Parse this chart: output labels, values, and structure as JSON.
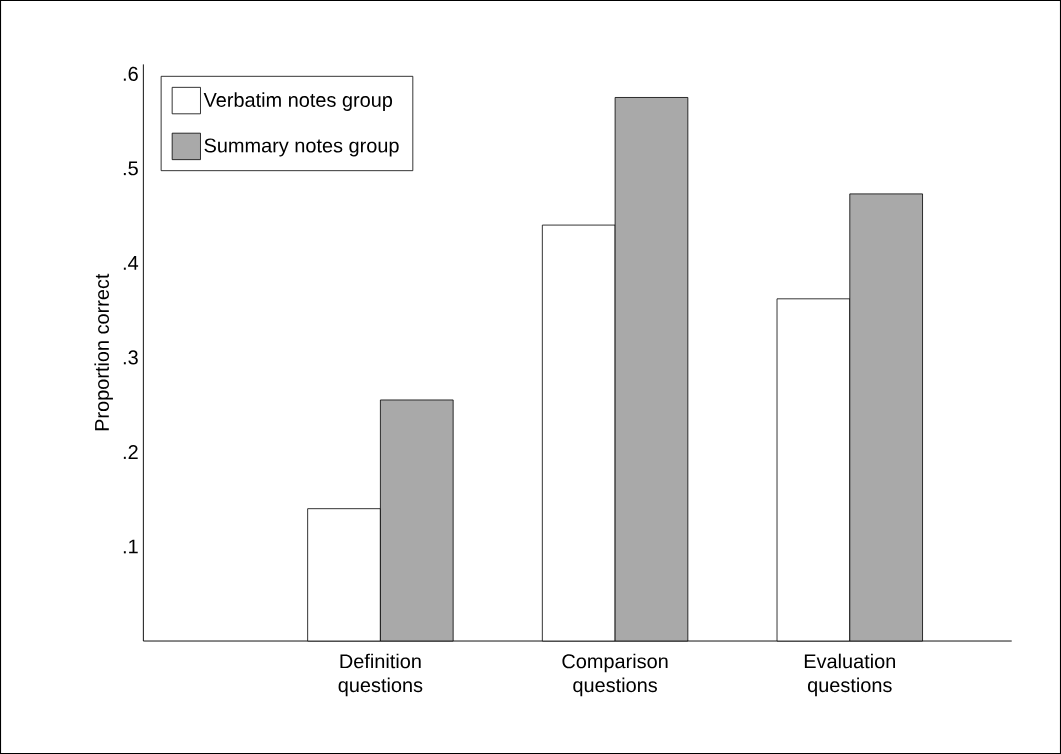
{
  "chart_data": {
    "type": "bar",
    "ylabel": "Proportion correct",
    "categories": [
      "Definition questions",
      "Comparison questions",
      "Evaluation questions"
    ],
    "series": [
      {
        "name": "Verbatim notes group",
        "color": "#ffffff",
        "values": [
          0.14,
          0.44,
          0.362
        ]
      },
      {
        "name": "Summary notes group",
        "color": "#a9a9a9",
        "values": [
          0.255,
          0.575,
          0.473
        ]
      }
    ],
    "ylim": [
      0,
      0.61
    ],
    "yticks": [
      {
        "value": 0.1,
        "label": ".1"
      },
      {
        "value": 0.2,
        "label": ".2"
      },
      {
        "value": 0.3,
        "label": ".3"
      },
      {
        "value": 0.4,
        "label": ".4"
      },
      {
        "value": 0.5,
        "label": ".5"
      },
      {
        "value": 0.6,
        "label": ".6"
      }
    ],
    "legend": "top left",
    "grid": false
  }
}
